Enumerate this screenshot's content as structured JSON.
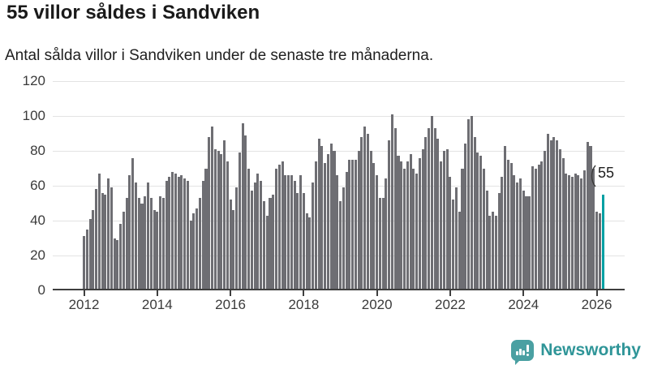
{
  "header": {
    "title": "55 villor såldes i Sandviken",
    "subtitle": "Antal sålda villor i Sandviken under de senaste tre månaderna."
  },
  "chart_data": {
    "type": "bar",
    "title": "55 villor såldes i Sandviken",
    "subtitle": "Antal sålda villor i Sandviken under de senaste tre månaderna.",
    "x_start": "2012-01",
    "x_frequency": "monthly",
    "xlabel": "",
    "ylabel": "",
    "ylim": [
      0,
      120
    ],
    "yticks": [
      0,
      20,
      40,
      60,
      80,
      100,
      120
    ],
    "xticks": [
      2012,
      2014,
      2016,
      2018,
      2020,
      2022,
      2024,
      2026
    ],
    "grid": true,
    "legend": false,
    "bar_color": "#6e6e73",
    "highlight_color": "#00a0a3",
    "highlight_index": 170,
    "highlight": {
      "label": "55",
      "value": 55
    },
    "values": [
      31,
      35,
      41,
      46,
      58,
      67,
      56,
      55,
      64,
      59,
      30,
      29,
      38,
      45,
      53,
      66,
      76,
      62,
      53,
      50,
      54,
      62,
      53,
      46,
      45,
      54,
      53,
      63,
      65,
      68,
      67,
      65,
      66,
      64,
      63,
      40,
      44,
      47,
      53,
      63,
      70,
      88,
      94,
      81,
      80,
      78,
      86,
      74,
      52,
      46,
      59,
      79,
      96,
      89,
      70,
      57,
      62,
      67,
      63,
      51,
      43,
      53,
      55,
      70,
      72,
      74,
      66,
      66,
      66,
      63,
      56,
      66,
      56,
      44,
      42,
      62,
      74,
      87,
      83,
      73,
      78,
      84,
      80,
      66,
      51,
      59,
      68,
      75,
      75,
      75,
      80,
      88,
      94,
      90,
      80,
      73,
      66,
      53,
      53,
      64,
      86,
      101,
      93,
      77,
      74,
      70,
      74,
      78,
      70,
      67,
      76,
      81,
      88,
      93,
      100,
      93,
      87,
      74,
      80,
      81,
      65,
      52,
      59,
      45,
      70,
      84,
      98,
      100,
      88,
      79,
      77,
      70,
      57,
      43,
      45,
      43,
      56,
      65,
      83,
      75,
      73,
      66,
      62,
      64,
      57,
      54,
      54,
      71,
      70,
      72,
      74,
      80,
      90,
      86,
      88,
      86,
      81,
      76,
      67,
      66,
      65,
      67,
      66,
      64,
      69,
      85,
      83,
      70,
      45,
      44,
      55
    ]
  },
  "footer": {
    "brand": "Newsworthy",
    "brand_color": "#2f9598",
    "logo_icon": "newsworthy-speech-bubble-bar-chart-icon"
  }
}
